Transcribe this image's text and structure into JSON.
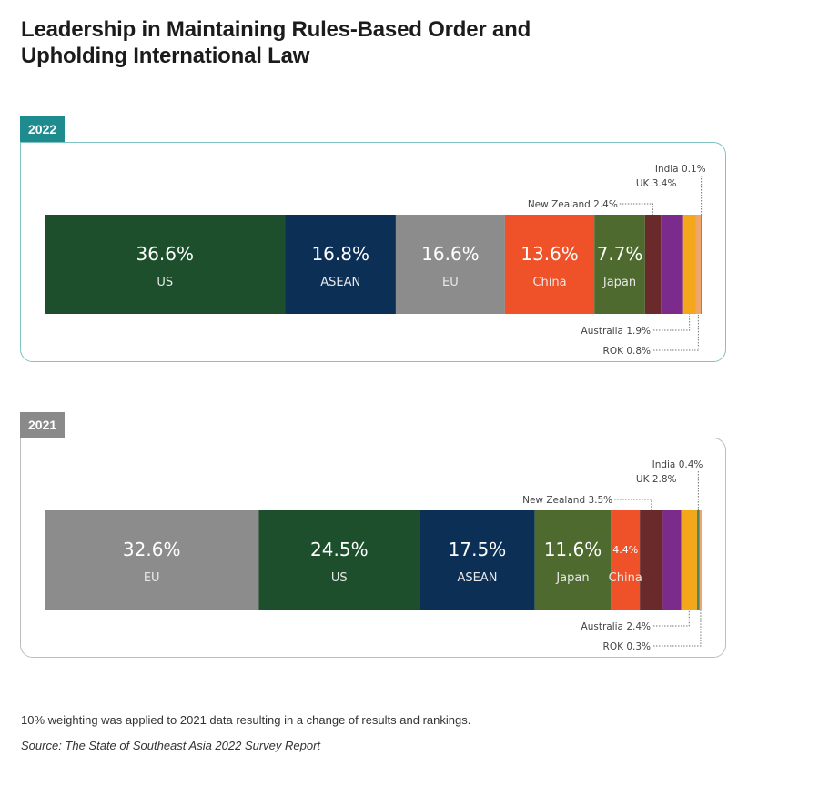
{
  "title_line1": "Leadership in Maintaining Rules-Based Order and",
  "title_line2": "Upholding International Law",
  "note": "10% weighting was applied to 2021 data resulting in a change of results and rankings.",
  "source": "Source: The State of Southeast Asia 2022 Survey Report",
  "colors": {
    "US": "#1d4f2c",
    "ASEAN": "#0c2f56",
    "EU": "#8c8c8c",
    "China": "#ef5128",
    "Japan": "#4e6a2e",
    "New Zealand": "#6a2a2c",
    "UK": "#7a2b8c",
    "Australia": "#f5a71c",
    "ROK": "#f0a56b",
    "India": "#1e8c8a",
    "India_2021": "#4a8a5c",
    "tab_2022": "#1e8c8f",
    "tab_2021": "#8a8a8a",
    "border_2022": "#7fc3c3",
    "border_2021": "#bdbdbd"
  },
  "chart_data": [
    {
      "type": "bar",
      "orientation": "horizontal-stacked-100",
      "title": "2022",
      "unit": "%",
      "categories": [
        "US",
        "ASEAN",
        "EU",
        "China",
        "Japan",
        "New Zealand",
        "UK",
        "Australia",
        "ROK",
        "India"
      ],
      "values": [
        36.6,
        16.8,
        16.6,
        13.6,
        7.7,
        2.4,
        3.4,
        1.9,
        0.8,
        0.1
      ],
      "labels_inside": [
        "US",
        "ASEAN",
        "EU",
        "China",
        "Japan"
      ],
      "callouts_above": [
        "New Zealand",
        "UK",
        "India"
      ],
      "callouts_below": [
        "Australia",
        "ROK"
      ]
    },
    {
      "type": "bar",
      "orientation": "horizontal-stacked-100",
      "title": "2021",
      "unit": "%",
      "categories": [
        "EU",
        "US",
        "ASEAN",
        "Japan",
        "China",
        "New Zealand",
        "UK",
        "Australia",
        "India",
        "ROK"
      ],
      "values": [
        32.6,
        24.5,
        17.5,
        11.6,
        4.4,
        3.5,
        2.8,
        2.4,
        0.4,
        0.3
      ],
      "labels_inside": [
        "EU",
        "US",
        "ASEAN",
        "Japan",
        "China"
      ],
      "callouts_above": [
        "New Zealand",
        "UK",
        "India"
      ],
      "callouts_below": [
        "Australia",
        "ROK"
      ]
    }
  ]
}
